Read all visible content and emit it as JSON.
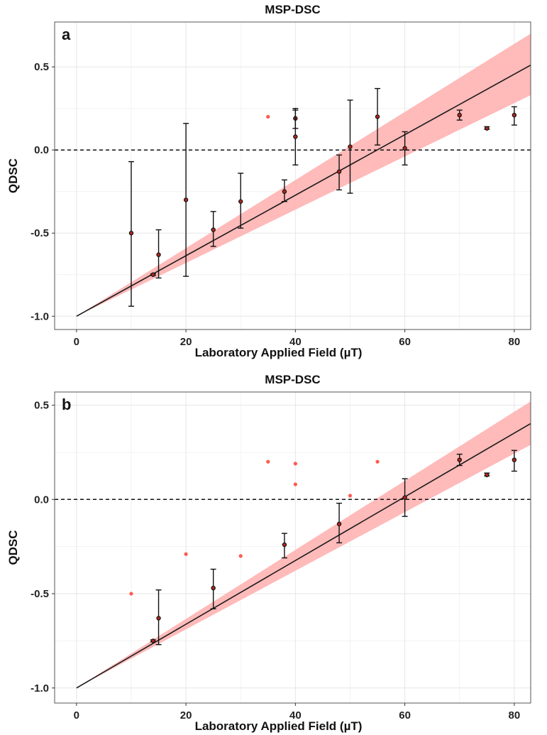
{
  "chart_data": [
    {
      "type": "scatter",
      "panel_label": "a",
      "title": "MSP-DSC",
      "xlabel": "Laboratory Applied Field (µT)",
      "ylabel": "QDSC",
      "xlim": [
        -4,
        83
      ],
      "ylim": [
        -1.08,
        0.77
      ],
      "xticks": [
        0,
        20,
        40,
        60,
        80
      ],
      "xtick_labels": [
        "0",
        "20",
        "40",
        "60",
        "80"
      ],
      "yticks": [
        -1.0,
        -0.5,
        0.0,
        0.5
      ],
      "ytick_labels": [
        "-1.0",
        "-0.5",
        "0.0",
        "0.5"
      ],
      "grid": true,
      "reference_line_y": 0.0,
      "fit": {
        "intercept": -1.0,
        "slope": 0.0182,
        "x_range": [
          0,
          83
        ]
      },
      "confidence_band": {
        "x": [
          0,
          83
        ],
        "lower": [
          -1.0,
          0.33
        ],
        "upper": [
          -1.0,
          0.7
        ]
      },
      "points": [
        {
          "x": 10,
          "y": -0.5,
          "err_low": -0.94,
          "err_high": -0.07,
          "included": true
        },
        {
          "x": 14,
          "y": -0.75,
          "err_low": -0.755,
          "err_high": -0.745,
          "included": true
        },
        {
          "x": 15,
          "y": -0.63,
          "err_low": -0.77,
          "err_high": -0.48,
          "included": true
        },
        {
          "x": 20,
          "y": -0.3,
          "err_low": -0.76,
          "err_high": 0.16,
          "included": true
        },
        {
          "x": 25,
          "y": -0.48,
          "err_low": -0.58,
          "err_high": -0.37,
          "included": true
        },
        {
          "x": 30,
          "y": -0.31,
          "err_low": -0.47,
          "err_high": -0.14,
          "included": true
        },
        {
          "x": 35,
          "y": 0.2,
          "err_low": null,
          "err_high": null,
          "included": false
        },
        {
          "x": 38,
          "y": -0.25,
          "err_low": -0.31,
          "err_high": -0.18,
          "included": true
        },
        {
          "x": 40,
          "y": 0.19,
          "err_low": 0.13,
          "err_high": 0.25,
          "included": true
        },
        {
          "x": 40,
          "y": 0.08,
          "err_low": -0.09,
          "err_high": 0.24,
          "included": true
        },
        {
          "x": 48,
          "y": -0.13,
          "err_low": -0.24,
          "err_high": -0.03,
          "included": true
        },
        {
          "x": 50,
          "y": 0.02,
          "err_low": -0.26,
          "err_high": 0.3,
          "included": true
        },
        {
          "x": 55,
          "y": 0.2,
          "err_low": 0.03,
          "err_high": 0.37,
          "included": true
        },
        {
          "x": 60,
          "y": 0.01,
          "err_low": -0.09,
          "err_high": 0.11,
          "included": true
        },
        {
          "x": 70,
          "y": 0.21,
          "err_low": 0.18,
          "err_high": 0.24,
          "included": true
        },
        {
          "x": 75,
          "y": 0.13,
          "err_low": 0.125,
          "err_high": 0.14,
          "included": true
        },
        {
          "x": 80,
          "y": 0.21,
          "err_low": 0.15,
          "err_high": 0.26,
          "included": true
        }
      ]
    },
    {
      "type": "scatter",
      "panel_label": "b",
      "title": "MSP-DSC",
      "xlabel": "Laboratory Applied Field (µT)",
      "ylabel": "QDSC",
      "xlim": [
        -4,
        83
      ],
      "ylim": [
        -1.08,
        0.57
      ],
      "xticks": [
        0,
        20,
        40,
        60,
        80
      ],
      "xtick_labels": [
        "0",
        "20",
        "40",
        "60",
        "80"
      ],
      "yticks": [
        -1.0,
        -0.5,
        0.0,
        0.5
      ],
      "ytick_labels": [
        "-1.0",
        "-0.5",
        "0.0",
        "0.5"
      ],
      "grid": true,
      "reference_line_y": 0.0,
      "fit": {
        "intercept": -1.0,
        "slope": 0.0169,
        "x_range": [
          0,
          83
        ]
      },
      "confidence_band": {
        "x": [
          0,
          83
        ],
        "lower": [
          -1.0,
          0.29
        ],
        "upper": [
          -1.0,
          0.52
        ]
      },
      "points": [
        {
          "x": 10,
          "y": -0.5,
          "err_low": null,
          "err_high": null,
          "included": false
        },
        {
          "x": 14,
          "y": -0.75,
          "err_low": -0.755,
          "err_high": -0.745,
          "included": true
        },
        {
          "x": 15,
          "y": -0.63,
          "err_low": -0.77,
          "err_high": -0.48,
          "included": true
        },
        {
          "x": 20,
          "y": -0.29,
          "err_low": null,
          "err_high": null,
          "included": false
        },
        {
          "x": 25,
          "y": -0.47,
          "err_low": -0.58,
          "err_high": -0.37,
          "included": true
        },
        {
          "x": 30,
          "y": -0.3,
          "err_low": null,
          "err_high": null,
          "included": false
        },
        {
          "x": 35,
          "y": 0.2,
          "err_low": null,
          "err_high": null,
          "included": false
        },
        {
          "x": 38,
          "y": -0.24,
          "err_low": -0.31,
          "err_high": -0.18,
          "included": true
        },
        {
          "x": 40,
          "y": 0.19,
          "err_low": null,
          "err_high": null,
          "included": false
        },
        {
          "x": 40,
          "y": 0.08,
          "err_low": null,
          "err_high": null,
          "included": false
        },
        {
          "x": 48,
          "y": -0.13,
          "err_low": -0.23,
          "err_high": -0.02,
          "included": true
        },
        {
          "x": 50,
          "y": 0.02,
          "err_low": null,
          "err_high": null,
          "included": false
        },
        {
          "x": 55,
          "y": 0.2,
          "err_low": null,
          "err_high": null,
          "included": false
        },
        {
          "x": 60,
          "y": 0.01,
          "err_low": -0.09,
          "err_high": 0.11,
          "included": true
        },
        {
          "x": 70,
          "y": 0.21,
          "err_low": 0.18,
          "err_high": 0.24,
          "included": true
        },
        {
          "x": 75,
          "y": 0.13,
          "err_low": 0.125,
          "err_high": 0.14,
          "included": true
        },
        {
          "x": 80,
          "y": 0.21,
          "err_low": 0.15,
          "err_high": 0.26,
          "included": true
        }
      ]
    }
  ]
}
